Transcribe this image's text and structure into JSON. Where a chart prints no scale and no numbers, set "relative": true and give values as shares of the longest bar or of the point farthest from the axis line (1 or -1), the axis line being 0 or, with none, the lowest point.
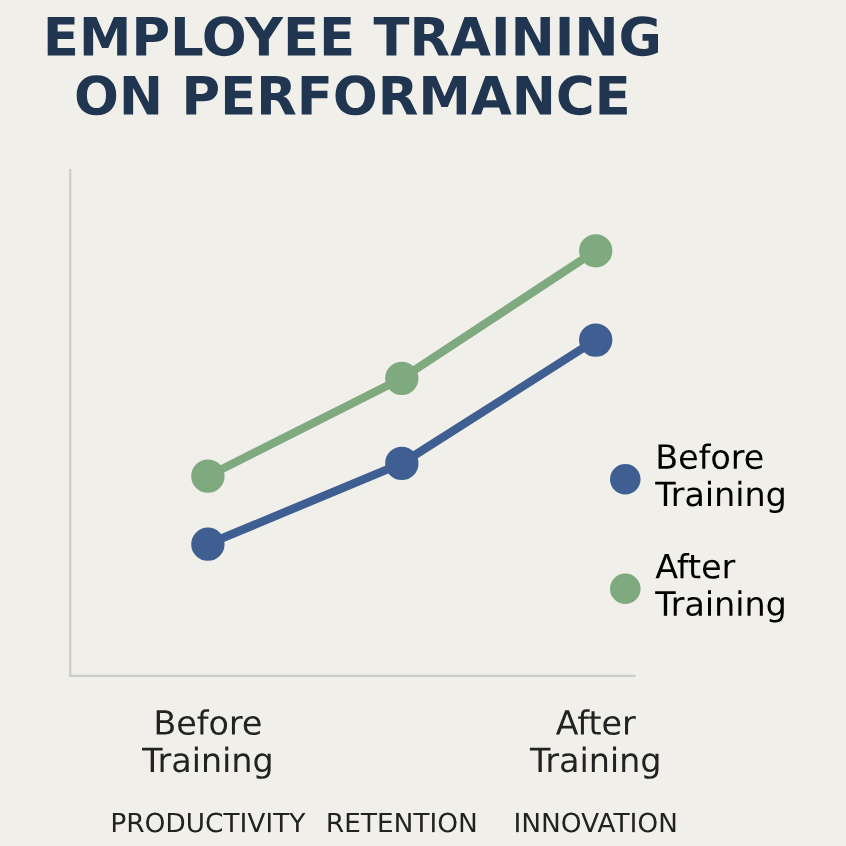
{
  "chart_data": {
    "type": "line",
    "title": "EMPLOYEE TRAINING\nON PERFORMANCE",
    "categories": [
      "PRODUCTIVITY",
      "RETENTION",
      "INNOVATION"
    ],
    "relative": true,
    "marker": "circle",
    "line_style": "solid",
    "legend": "right",
    "grid": false,
    "series": [
      {
        "name": "Before\nTraining",
        "color": "#3f5e91",
        "values": [
          0.31,
          0.5,
          0.79
        ]
      },
      {
        "name": "After\nTraining",
        "color": "#7fa97e",
        "values": [
          0.47,
          0.7,
          1
        ]
      }
    ],
    "annotations": [
      "Before\nTraining",
      "After\nTraining"
    ]
  }
}
